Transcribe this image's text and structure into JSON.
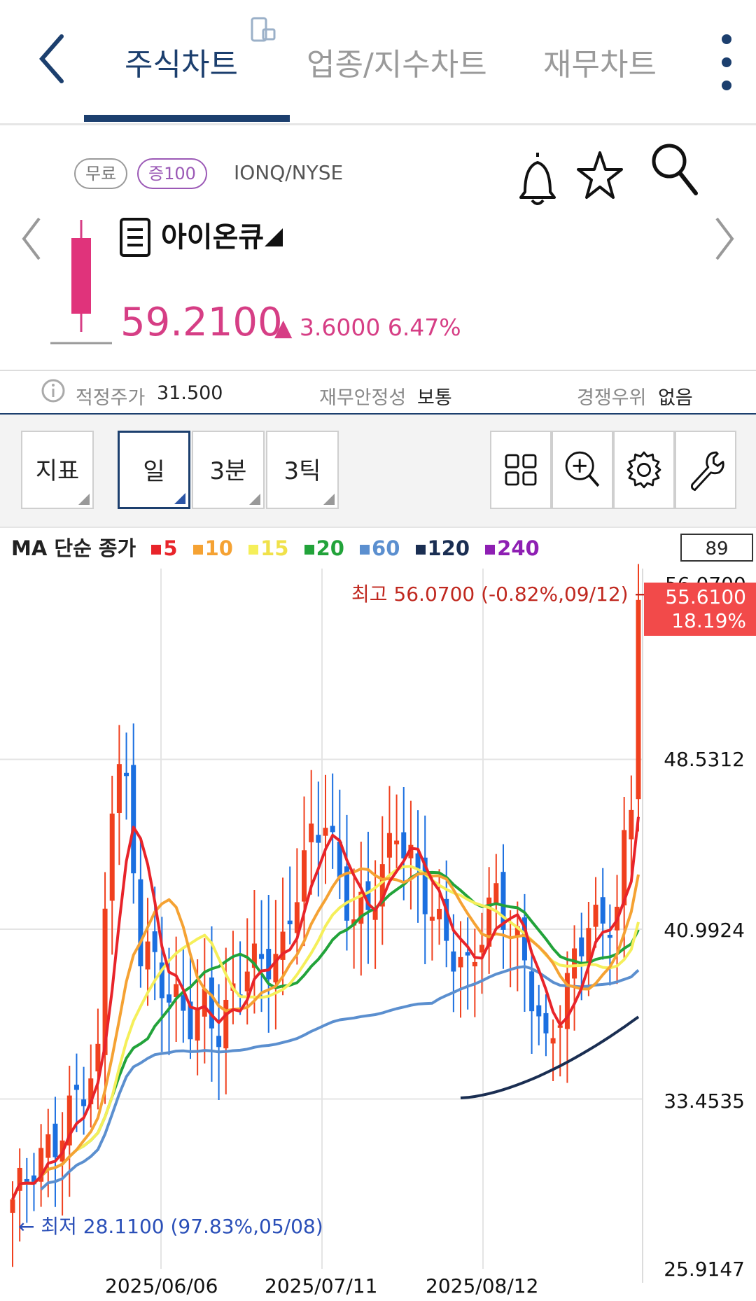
{
  "tabs": [
    {
      "label": "주식차트",
      "active": true
    },
    {
      "label": "업종/지수차트",
      "active": false
    },
    {
      "label": "재무차트",
      "active": false
    }
  ],
  "header": {
    "badge_free": "무료",
    "badge_margin": "증100",
    "ticker": "IONQ/NYSE",
    "name": "아이온큐",
    "price": "59.2100",
    "change": "▲ 3.6000 6.47%"
  },
  "info": {
    "fair_price_label": "적정주가",
    "fair_price_value": "31.500",
    "stability_label": "재무안정성",
    "stability_value": "보통",
    "advantage_label": "경쟁우위",
    "advantage_value": "없음"
  },
  "toolbar": {
    "indicator": "지표",
    "day": "일",
    "min3": "3분",
    "tick3": "3틱"
  },
  "chart": {
    "legend_title": "MA 단순 종가",
    "ma": [
      {
        "label": "5",
        "color": "#e8242a"
      },
      {
        "label": "10",
        "color": "#f5a233"
      },
      {
        "label": "15",
        "color": "#f5ef5a"
      },
      {
        "label": "20",
        "color": "#22a33a"
      },
      {
        "label": "60",
        "color": "#5b8fcf"
      },
      {
        "label": "120",
        "color": "#1a2e52"
      },
      {
        "label": "240",
        "color": "#8e1fb3"
      }
    ],
    "count": "89",
    "high_note": "최고 56.0700 (-0.82%,09/12) →",
    "low_note": "← 최저 28.1100 (97.83%,05/08)",
    "last_price": "55.6100",
    "last_pct": "18.19%",
    "top_cut_label": "56.0700"
  },
  "chart_data": {
    "type": "candlestick",
    "title": "",
    "y_ticks": [
      "48.5312",
      "40.9924",
      "33.4535",
      "25.9147"
    ],
    "x_ticks": [
      "2025/06/06",
      "2025/07/11",
      "2025/08/12"
    ],
    "ylim": [
      25.9147,
      56.07
    ],
    "high": 56.07,
    "low": 28.11,
    "last": 55.61
  }
}
